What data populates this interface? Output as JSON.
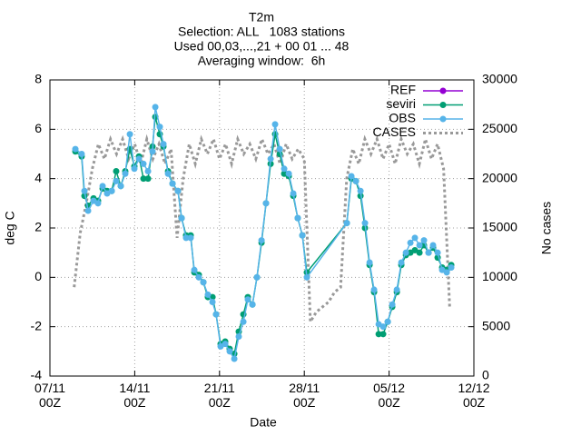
{
  "chart_data": {
    "type": "line",
    "title": "T2m",
    "subtitle": [
      "Selection: ALL   1083 stations",
      "Used 00,03,...,21 + 00 01 ... 48",
      "Averaging window:  6h"
    ],
    "xlabel": "Date",
    "ylabel": "deg C",
    "y2label": "No cases",
    "xlim": [
      0,
      35
    ],
    "xticks": [
      {
        "value": 0,
        "label": "07/11\n00Z"
      },
      {
        "value": 7,
        "label": "14/11\n00Z"
      },
      {
        "value": 14,
        "label": "21/11\n00Z"
      },
      {
        "value": 21,
        "label": "28/11\n00Z"
      },
      {
        "value": 28,
        "label": "05/12\n00Z"
      },
      {
        "value": 35,
        "label": "12/12\n00Z"
      }
    ],
    "ylim": [
      -4,
      8
    ],
    "yticks": [
      -4,
      -2,
      0,
      2,
      4,
      6,
      8
    ],
    "y2lim": [
      0,
      30000
    ],
    "y2ticks": [
      0,
      5000,
      10000,
      15000,
      20000,
      25000,
      30000
    ],
    "grid": true,
    "legend": "top-right",
    "x": [
      2.1,
      2.62,
      2.85,
      3.15,
      3.6,
      3.97,
      4.35,
      4.72,
      5.1,
      5.47,
      5.85,
      6.22,
      6.6,
      6.97,
      7.35,
      7.72,
      8.1,
      8.47,
      8.7,
      9.07,
      9.37,
      9.75,
      10.12,
      10.57,
      10.87,
      11.24,
      11.62,
      11.92,
      12.29,
      12.67,
      13.04,
      13.42,
      13.72,
      14.09,
      14.47,
      14.84,
      15.22,
      15.59,
      15.97,
      16.34,
      16.72,
      17.09,
      17.47,
      17.84,
      18.22,
      18.59,
      18.97,
      19.34,
      19.72,
      20.09,
      20.46,
      20.84,
      21.21,
      24.51,
      24.89,
      25.26,
      25.64,
      26.01,
      26.39,
      26.76,
      27.14,
      27.51,
      27.89,
      28.26,
      28.64,
      29.01,
      29.39,
      29.76,
      30.13,
      30.51,
      30.88,
      31.26,
      31.63,
      32.01,
      32.38,
      32.76,
      33.13
    ],
    "series": [
      {
        "name": "REF",
        "color": "#9400d3",
        "values": [
          null,
          null,
          null,
          null,
          null,
          null,
          null,
          null,
          null,
          null,
          null,
          null,
          null,
          null,
          null,
          null,
          null,
          null,
          null,
          null,
          null,
          null,
          null,
          null,
          null,
          null,
          null,
          null,
          null,
          null,
          null,
          null,
          null,
          null,
          null,
          null,
          null,
          null,
          null,
          null,
          null,
          null,
          null,
          null,
          null,
          null,
          null,
          null,
          null,
          null,
          null,
          null,
          null,
          null,
          null,
          null,
          null,
          null,
          null,
          null,
          null,
          null,
          null,
          null,
          null,
          null,
          null,
          null,
          null,
          null,
          null,
          null,
          null,
          null,
          null,
          null,
          null
        ]
      },
      {
        "name": "seviri",
        "color": "#009e73",
        "values": [
          5.1,
          4.9,
          3.3,
          2.9,
          3.2,
          3.1,
          3.6,
          3.5,
          3.5,
          4.3,
          3.7,
          4.3,
          5.2,
          4.5,
          4.9,
          4.0,
          4.0,
          5.3,
          6.5,
          5.8,
          5.3,
          4.3,
          3.8,
          3.5,
          2.4,
          1.7,
          1.7,
          0.2,
          0.1,
          -0.2,
          -0.8,
          -0.8,
          -1.5,
          -2.7,
          -2.6,
          -2.9,
          -3.1,
          -2.2,
          -1.5,
          -0.8,
          -1.1,
          0.0,
          1.4,
          3.0,
          4.6,
          5.8,
          5.0,
          4.2,
          4.1,
          3.3,
          2.4,
          1.7,
          0.2,
          2.2,
          4.0,
          3.9,
          3.3,
          2.0,
          0.5,
          -0.6,
          -2.3,
          -2.3,
          -1.8,
          -1.2,
          -0.6,
          0.5,
          0.9,
          1.0,
          1.1,
          1.0,
          1.3,
          1.0,
          1.2,
          0.8,
          0.4,
          0.3,
          0.5
        ]
      },
      {
        "name": "OBS",
        "color": "#56b4e9",
        "values": [
          5.2,
          5.0,
          3.5,
          2.7,
          3.1,
          3.0,
          3.7,
          3.4,
          3.5,
          3.9,
          3.7,
          4.2,
          5.8,
          4.4,
          4.8,
          4.6,
          4.3,
          5.1,
          6.9,
          6.1,
          5.4,
          4.2,
          3.8,
          3.5,
          2.4,
          1.6,
          1.6,
          0.3,
          0.0,
          -0.2,
          -0.7,
          -1.0,
          -1.5,
          -2.8,
          -2.7,
          -3.0,
          -3.3,
          -2.4,
          -1.8,
          -0.9,
          -1.1,
          0.0,
          1.5,
          3.0,
          4.8,
          6.2,
          5.2,
          4.4,
          4.2,
          3.4,
          2.4,
          1.7,
          0.0,
          2.2,
          4.1,
          3.9,
          3.5,
          2.2,
          0.6,
          -0.5,
          -1.9,
          -2.0,
          -1.8,
          -1.1,
          -0.5,
          0.6,
          1.0,
          1.4,
          1.6,
          1.3,
          1.5,
          1.0,
          1.3,
          1.0,
          0.3,
          0.2,
          0.4
        ]
      },
      {
        "name": "CASES",
        "color": "#999999",
        "axis": "y2",
        "x": [
          2.0,
          2.5,
          3.0,
          3.5,
          4.0,
          4.5,
          5.0,
          5.5,
          6.0,
          6.5,
          7.0,
          7.5,
          8.0,
          8.5,
          9.0,
          9.5,
          10.0,
          10.5,
          11.0,
          11.5,
          12.0,
          12.5,
          13.0,
          13.5,
          14.0,
          14.5,
          15.0,
          15.5,
          16.0,
          16.5,
          17.0,
          17.5,
          18.0,
          18.5,
          19.0,
          19.5,
          20.0,
          20.5,
          21.0,
          21.5,
          22.0,
          22.5,
          23.0,
          23.5,
          24.0,
          24.5,
          25.0,
          25.5,
          26.0,
          26.5,
          27.0,
          27.5,
          28.0,
          28.5,
          29.0,
          29.5,
          30.0,
          30.5,
          31.0,
          31.5,
          32.0,
          32.5,
          33.0
        ],
        "values": [
          9000,
          14500,
          17500,
          21000,
          23500,
          22000,
          24000,
          22500,
          24000,
          22000,
          23500,
          21500,
          24000,
          22000,
          23500,
          21500,
          23000,
          14000,
          20000,
          23500,
          21500,
          24000,
          22500,
          24000,
          22000,
          23500,
          21500,
          24000,
          22500,
          23500,
          22000,
          24000,
          22500,
          23500,
          21500,
          23500,
          22000,
          23000,
          22000,
          5500,
          6500,
          7000,
          7500,
          8500,
          9000,
          20000,
          23000,
          21500,
          24000,
          22500,
          24000,
          22000,
          23500,
          21500,
          24000,
          22500,
          23500,
          21500,
          24000,
          22000,
          23500,
          21000,
          7000
        ]
      }
    ]
  }
}
